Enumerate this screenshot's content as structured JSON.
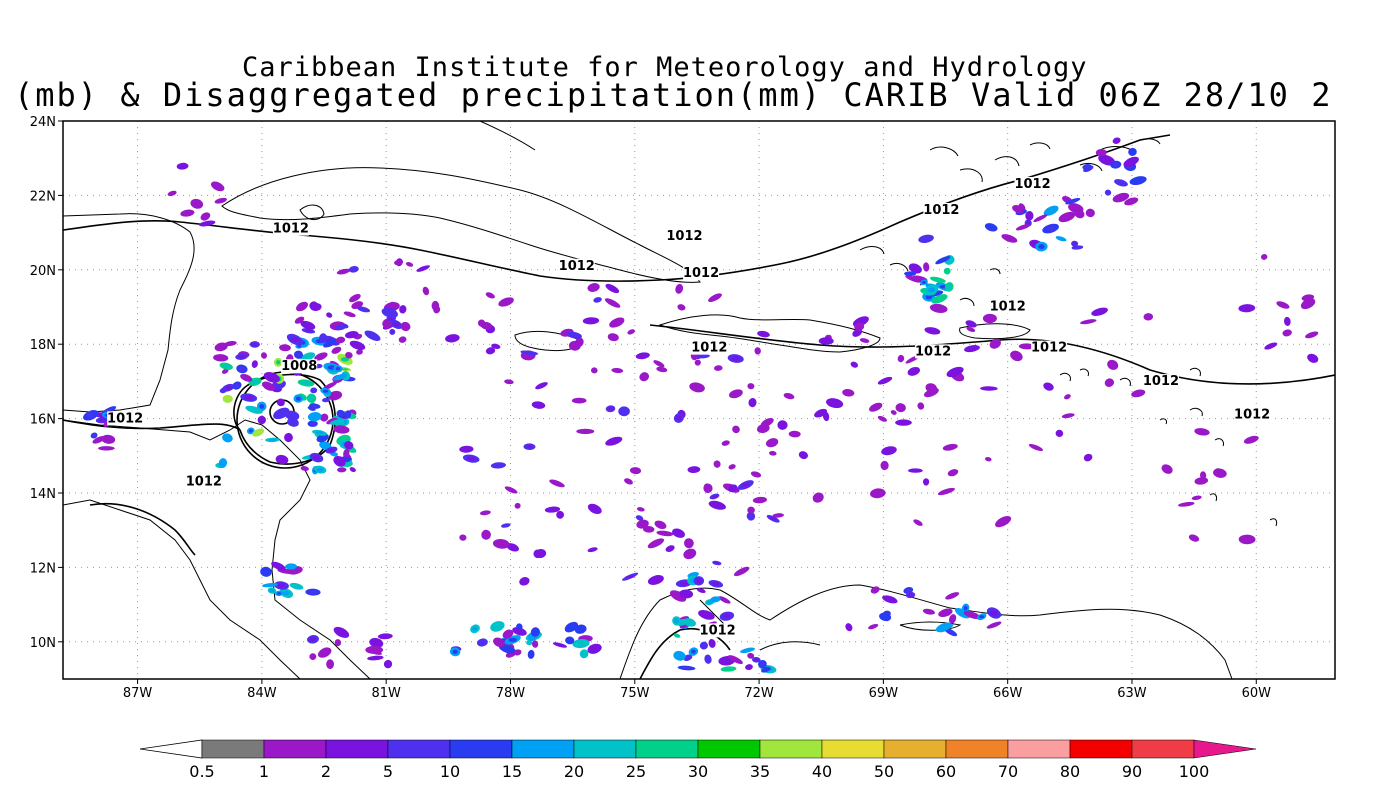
{
  "title": {
    "line1": "Caribbean Institute for Meteorology and Hydrology",
    "line2": "(mb) & Disaggregated precipitation(mm) CARIB Valid 06Z 28/10 2"
  },
  "map": {
    "lon_range": [
      -88.8,
      -58.1
    ],
    "lat_range": [
      9.0,
      24.0
    ],
    "lon_ticks": [
      "87W",
      "84W",
      "81W",
      "78W",
      "75W",
      "72W",
      "69W",
      "66W",
      "63W",
      "60W"
    ],
    "lat_ticks": [
      "24N",
      "22N",
      "20N",
      "18N",
      "16N",
      "14N",
      "12N",
      "10N"
    ],
    "grid": "dotted"
  },
  "isobar_labels": [
    {
      "text": "1012",
      "lon": -83.3,
      "lat": 21.0
    },
    {
      "text": "1012",
      "lon": -73.8,
      "lat": 20.8
    },
    {
      "text": "1012",
      "lon": -76.4,
      "lat": 20.0
    },
    {
      "text": "1012",
      "lon": -73.4,
      "lat": 19.8
    },
    {
      "text": "1012",
      "lon": -67.6,
      "lat": 21.5
    },
    {
      "text": "1012",
      "lon": -65.4,
      "lat": 22.2
    },
    {
      "text": "1012",
      "lon": -66.0,
      "lat": 18.9
    },
    {
      "text": "1012",
      "lon": -73.2,
      "lat": 17.8
    },
    {
      "text": "1012",
      "lon": -67.8,
      "lat": 17.7
    },
    {
      "text": "1012",
      "lon": -65.0,
      "lat": 17.8
    },
    {
      "text": "1012",
      "lon": -62.3,
      "lat": 16.9
    },
    {
      "text": "1012",
      "lon": -60.1,
      "lat": 16.0
    },
    {
      "text": "1012",
      "lon": -87.3,
      "lat": 15.9
    },
    {
      "text": "1012",
      "lon": -85.4,
      "lat": 14.2
    },
    {
      "text": "1012",
      "lon": -73.0,
      "lat": 10.2
    },
    {
      "text": "1008",
      "lon": -83.1,
      "lat": 17.3
    }
  ],
  "colorbar": {
    "labels": [
      "0.5",
      "1",
      "2",
      "5",
      "10",
      "15",
      "20",
      "25",
      "30",
      "35",
      "40",
      "50",
      "60",
      "70",
      "80",
      "90",
      "100"
    ],
    "colors": [
      "#7a7a7a",
      "#9a18c8",
      "#7a12e0",
      "#5030f0",
      "#2a3cf2",
      "#00a0f5",
      "#00c2c8",
      "#00d08a",
      "#00c800",
      "#a0e63c",
      "#e6dc32",
      "#e6af2d",
      "#f08228",
      "#fa9ea0",
      "#f50000",
      "#f03c46",
      "#e6188c"
    ],
    "left_arrow_color": "#ffffff",
    "right_arrow_color": "#e6188c"
  },
  "precip_palette": [
    "#7a7a7a",
    "#9a18c8",
    "#7a12e0",
    "#5030f0",
    "#2a3cf2",
    "#00a0f5",
    "#00c2c8",
    "#00d08a",
    "#a0e63c"
  ]
}
